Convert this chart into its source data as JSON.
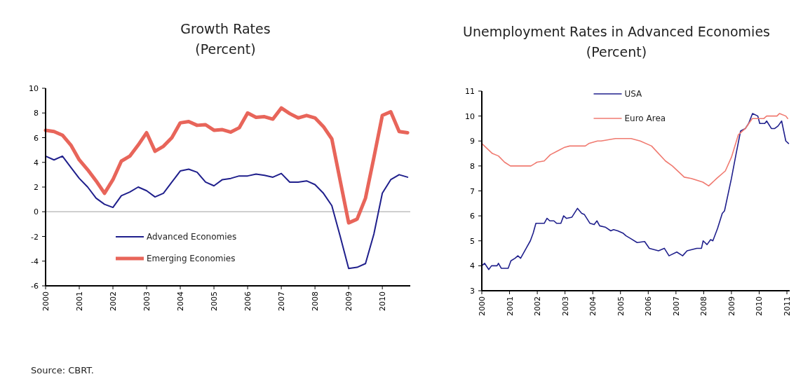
{
  "chart_data": [
    {
      "type": "line",
      "title": "Growth Rates",
      "subtitle": "(Percent)",
      "xlim": [
        2000,
        2010.83
      ],
      "xticks": [
        2000,
        2001,
        2002,
        2003,
        2004,
        2005,
        2006,
        2007,
        2008,
        2009,
        2010
      ],
      "ylim": [
        -6,
        10
      ],
      "yticks": [
        -6,
        -4,
        -2,
        0,
        2,
        4,
        6,
        8,
        10
      ],
      "grid": false,
      "legend": "bottom left",
      "ref_lines": [
        {
          "axis": "y",
          "value": 0,
          "color": "#bfbfbf"
        }
      ],
      "annotations": [
        "Source: CBRT."
      ],
      "x": [
        2000,
        2000.25,
        2000.5,
        2000.75,
        2001,
        2001.25,
        2001.5,
        2001.75,
        2002,
        2002.25,
        2002.5,
        2002.75,
        2003,
        2003.25,
        2003.5,
        2003.75,
        2004,
        2004.25,
        2004.5,
        2004.75,
        2005,
        2005.25,
        2005.5,
        2005.75,
        2006,
        2006.25,
        2006.5,
        2006.75,
        2007,
        2007.25,
        2007.5,
        2007.75,
        2008,
        2008.25,
        2008.5,
        2008.75,
        2009,
        2009.25,
        2009.5,
        2009.75,
        2010,
        2010.25,
        2010.5,
        2010.75
      ],
      "series": [
        {
          "name": "Advanced Economies",
          "color": "#1f1f8c",
          "values": [
            4.5,
            4.2,
            4.5,
            3.6,
            2.7,
            2.0,
            1.1,
            0.6,
            0.35,
            1.3,
            1.6,
            2.0,
            1.7,
            1.2,
            1.5,
            2.4,
            3.3,
            3.45,
            3.2,
            2.4,
            2.1,
            2.6,
            2.7,
            2.9,
            2.9,
            3.05,
            2.95,
            2.8,
            3.1,
            2.4,
            2.4,
            2.5,
            2.2,
            1.5,
            0.5,
            -2.0,
            -4.6,
            -4.5,
            -4.2,
            -1.8,
            1.5,
            2.6,
            3.0,
            2.8
          ]
        },
        {
          "name": "Emerging Economies",
          "color": "#e8655a",
          "values": [
            6.6,
            6.5,
            6.2,
            5.4,
            4.2,
            3.4,
            2.5,
            1.5,
            2.6,
            4.1,
            4.5,
            5.4,
            6.4,
            4.9,
            5.3,
            6.0,
            7.2,
            7.3,
            7.0,
            7.05,
            6.6,
            6.65,
            6.45,
            6.8,
            8.0,
            7.65,
            7.7,
            7.5,
            8.4,
            7.95,
            7.6,
            7.8,
            7.6,
            6.9,
            5.9,
            2.5,
            -0.9,
            -0.6,
            1.1,
            4.4,
            7.8,
            8.1,
            6.5,
            6.4
          ]
        }
      ]
    },
    {
      "type": "line",
      "title": "Unemployment Rates in Advanced Economies",
      "subtitle": "(Percent)",
      "xlim": [
        2000,
        2011.1
      ],
      "xticks": [
        2000,
        2001,
        2002,
        2003,
        2004,
        2005,
        2006,
        2007,
        2008,
        2009,
        2010,
        2011
      ],
      "ylim": [
        3,
        11
      ],
      "yticks": [
        3,
        4,
        5,
        6,
        7,
        8,
        9,
        10,
        11
      ],
      "grid": false,
      "legend": "top",
      "series": [
        {
          "name": "USA",
          "color": "#1f1f8c",
          "x": [
            2000,
            2000.1,
            2000.25,
            2000.35,
            2000.55,
            2000.6,
            2000.7,
            2000.95,
            2001.05,
            2001.2,
            2001.3,
            2001.4,
            2001.6,
            2001.75,
            2001.85,
            2001.95,
            2002.25,
            2002.35,
            2002.45,
            2002.6,
            2002.7,
            2002.85,
            2002.95,
            2003.05,
            2003.25,
            2003.45,
            2003.6,
            2003.7,
            2003.9,
            2004.05,
            2004.15,
            2004.25,
            2004.45,
            2004.65,
            2004.75,
            2004.9,
            2005.1,
            2005.2,
            2005.35,
            2005.6,
            2005.87,
            2006.04,
            2006.37,
            2006.58,
            2006.75,
            2007.03,
            2007.24,
            2007.4,
            2007.75,
            2007.92,
            2007.98,
            2008.12,
            2008.25,
            2008.33,
            2008.5,
            2008.67,
            2008.75,
            2009.0,
            2009.17,
            2009.33,
            2009.5,
            2009.62,
            2009.76,
            2009.95,
            2010.02,
            2010.2,
            2010.27,
            2010.44,
            2010.56,
            2010.68,
            2010.81,
            2010.96,
            2011.06
          ],
          "values": [
            4.0,
            4.1,
            3.85,
            4.0,
            4.0,
            4.1,
            3.9,
            3.9,
            4.2,
            4.3,
            4.4,
            4.3,
            4.7,
            5.0,
            5.3,
            5.7,
            5.7,
            5.9,
            5.8,
            5.8,
            5.7,
            5.7,
            6.0,
            5.9,
            5.95,
            6.3,
            6.1,
            6.05,
            5.7,
            5.65,
            5.8,
            5.6,
            5.55,
            5.4,
            5.45,
            5.4,
            5.3,
            5.2,
            5.1,
            4.93,
            4.97,
            4.7,
            4.6,
            4.7,
            4.4,
            4.55,
            4.4,
            4.6,
            4.7,
            4.7,
            5.0,
            4.85,
            5.05,
            5.0,
            5.5,
            6.1,
            6.2,
            7.5,
            8.5,
            9.4,
            9.5,
            9.7,
            10.1,
            10.0,
            9.7,
            9.7,
            9.8,
            9.5,
            9.5,
            9.6,
            9.8,
            9.0,
            8.9
          ]
        },
        {
          "name": "Euro Area",
          "color": "#f07a70",
          "x": [
            2000,
            2000.38,
            2000.6,
            2000.82,
            2001.03,
            2001.77,
            2001.99,
            2002.25,
            2002.47,
            2002.73,
            2002.99,
            2003.17,
            2003.73,
            2003.86,
            2004.17,
            2004.3,
            2004.82,
            2005.38,
            2005.71,
            2006.12,
            2006.62,
            2006.87,
            2007.3,
            2007.55,
            2007.97,
            2008.18,
            2008.47,
            2008.78,
            2009.0,
            2009.25,
            2009.5,
            2009.75,
            2010.17,
            2010.27,
            2010.64,
            2010.73,
            2010.96,
            2011.03
          ],
          "values": [
            8.9,
            8.5,
            8.4,
            8.15,
            8.0,
            8.0,
            8.15,
            8.2,
            8.45,
            8.6,
            8.75,
            8.8,
            8.8,
            8.9,
            9.0,
            9.0,
            9.1,
            9.1,
            9.0,
            8.8,
            8.2,
            8.0,
            7.55,
            7.5,
            7.35,
            7.2,
            7.5,
            7.8,
            8.35,
            9.25,
            9.5,
            9.9,
            9.9,
            10.0,
            10.0,
            10.1,
            10.0,
            9.9
          ]
        }
      ]
    }
  ]
}
